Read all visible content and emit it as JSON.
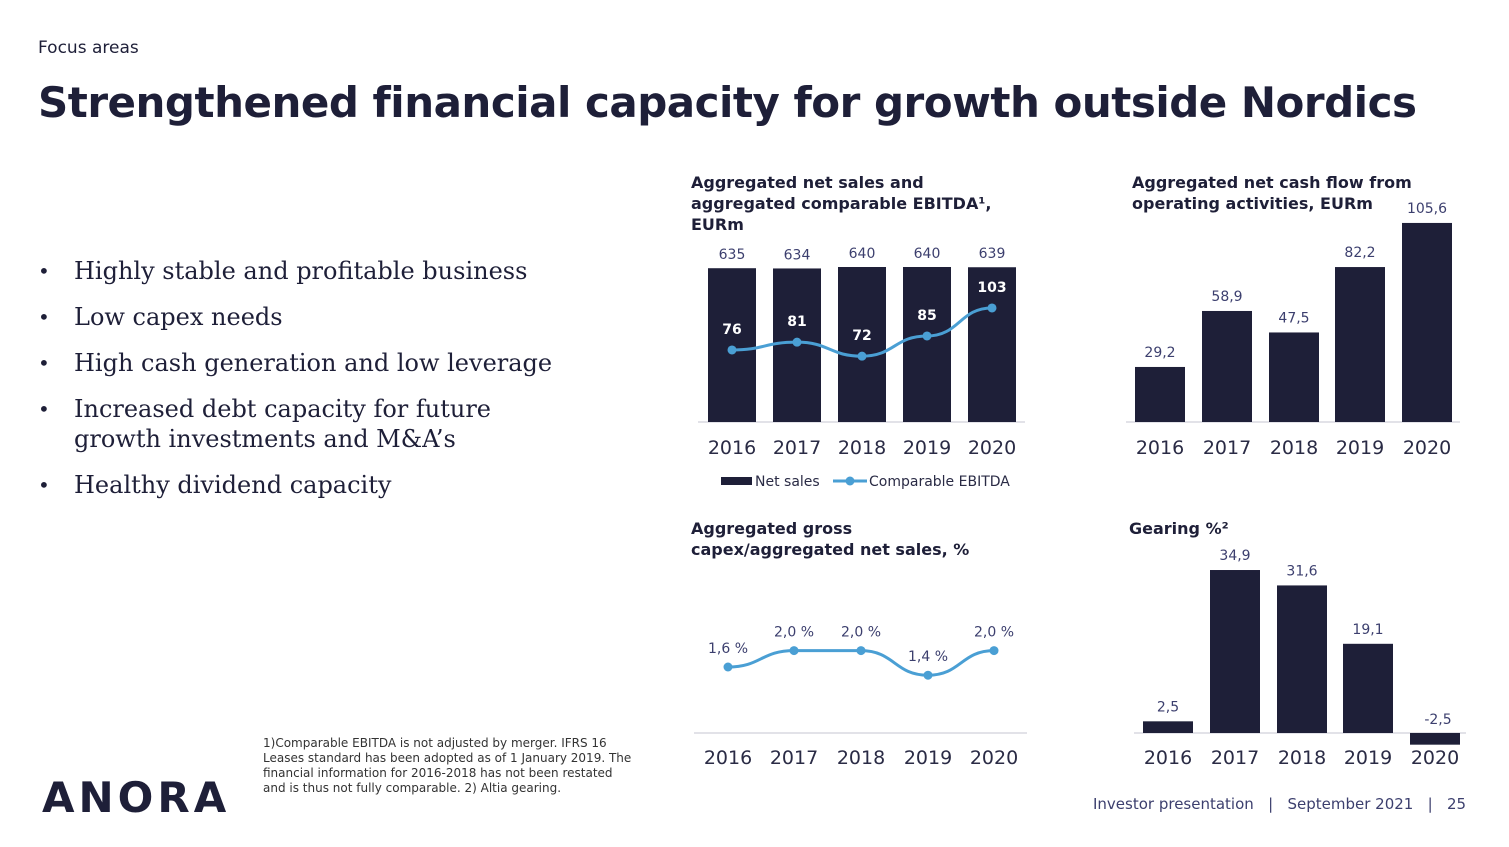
{
  "header": {
    "section": "Focus areas",
    "title": "Strengthened financial capacity for growth outside Nordics"
  },
  "bullets": [
    "Highly stable and profitable business",
    "Low capex needs",
    "High cash generation and low leverage",
    "Increased debt capacity for future growth investments and M&A’s",
    "Healthy dividend capacity"
  ],
  "footnote": "1)Comparable EBITDA is not adjusted by merger. IFRS 16 Leases standard has been adopted as of 1 January 2019. The financial information for 2016-2018 has not been restated and is thus not fully comparable. 2) Altia gearing.",
  "logo": "ANORA",
  "footer": {
    "left": "Investor presentation",
    "date": "September 2021",
    "page": "25"
  },
  "colors": {
    "bar": "#1e1f38",
    "line": "#4a9fd4",
    "label": "#3c3f6e"
  },
  "chart_data": [
    {
      "type": "bar",
      "title": "Aggregated net sales and aggregated comparable EBITDA¹, EURm",
      "categories": [
        "2016",
        "2017",
        "2018",
        "2019",
        "2020"
      ],
      "series": [
        {
          "name": "Net sales",
          "type": "bar",
          "values": [
            635,
            634,
            640,
            640,
            639
          ]
        },
        {
          "name": "Comparable EBITDA",
          "type": "line",
          "values": [
            76,
            81,
            72,
            85,
            103
          ]
        }
      ],
      "legend": "bottom"
    },
    {
      "type": "bar",
      "title": "Aggregated net cash flow from operating activities, EURm",
      "categories": [
        "2016",
        "2017",
        "2018",
        "2019",
        "2020"
      ],
      "values": [
        29.2,
        58.9,
        47.5,
        82.2,
        105.6
      ],
      "labels": [
        "29,2",
        "58,9",
        "47,5",
        "82,2",
        "105,6"
      ]
    },
    {
      "type": "line",
      "title": "Aggregated gross capex/aggregated net sales, %",
      "categories": [
        "2016",
        "2017",
        "2018",
        "2019",
        "2020"
      ],
      "values": [
        1.6,
        2.0,
        2.0,
        1.4,
        2.0
      ],
      "labels": [
        "1,6 %",
        "2,0 %",
        "2,0 %",
        "1,4 %",
        "2,0 %"
      ]
    },
    {
      "type": "bar",
      "title": "Gearing %²",
      "categories": [
        "2016",
        "2017",
        "2018",
        "2019",
        "2020"
      ],
      "values": [
        2.5,
        34.9,
        31.6,
        19.1,
        -2.5
      ],
      "labels": [
        "2,5",
        "34,9",
        "31,6",
        "19,1",
        "-2,5"
      ]
    }
  ]
}
